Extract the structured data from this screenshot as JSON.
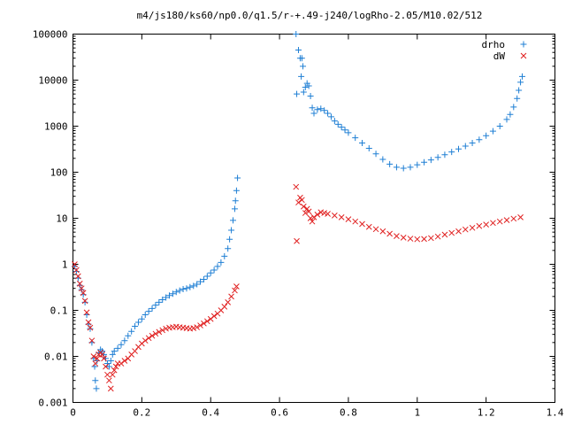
{
  "colors": {
    "drho": "#1f7fd4",
    "dW": "#e02020",
    "axis": "#000000",
    "background": "#ffffff"
  },
  "chart_data": {
    "type": "scatter",
    "title": "m4/js180/ks60/np0.0/q1.5/r-+.49-j240/logRho-2.05/M10.02/512",
    "xlabel": "",
    "ylabel": "",
    "xlim": [
      0,
      1.4
    ],
    "ylim": [
      0.001,
      100000
    ],
    "yscale": "log",
    "grid": false,
    "legend_position": "top-right",
    "x_ticks": [
      "0",
      "0.2",
      "0.4",
      "0.6",
      "0.8",
      "1",
      "1.2",
      "1.4"
    ],
    "y_ticks": [
      "0.001",
      "0.01",
      "0.1",
      "1",
      "10",
      "100",
      "1000",
      "10000",
      "100000"
    ],
    "series": [
      {
        "name": "drho",
        "marker": "plus",
        "points": [
          [
            0.005,
            0.9
          ],
          [
            0.01,
            0.7
          ],
          [
            0.015,
            0.5
          ],
          [
            0.02,
            0.35
          ],
          [
            0.025,
            0.28
          ],
          [
            0.03,
            0.22
          ],
          [
            0.035,
            0.15
          ],
          [
            0.04,
            0.08
          ],
          [
            0.045,
            0.05
          ],
          [
            0.05,
            0.04
          ],
          [
            0.055,
            0.02
          ],
          [
            0.06,
            0.009
          ],
          [
            0.063,
            0.006
          ],
          [
            0.065,
            0.003
          ],
          [
            0.068,
            0.002
          ],
          [
            0.07,
            0.008
          ],
          [
            0.075,
            0.012
          ],
          [
            0.08,
            0.014
          ],
          [
            0.085,
            0.013
          ],
          [
            0.09,
            0.011
          ],
          [
            0.095,
            0.009
          ],
          [
            0.1,
            0.007
          ],
          [
            0.105,
            0.006
          ],
          [
            0.11,
            0.008
          ],
          [
            0.115,
            0.011
          ],
          [
            0.12,
            0.013
          ],
          [
            0.13,
            0.015
          ],
          [
            0.14,
            0.018
          ],
          [
            0.15,
            0.022
          ],
          [
            0.16,
            0.028
          ],
          [
            0.17,
            0.035
          ],
          [
            0.18,
            0.045
          ],
          [
            0.19,
            0.055
          ],
          [
            0.2,
            0.065
          ],
          [
            0.21,
            0.08
          ],
          [
            0.22,
            0.095
          ],
          [
            0.23,
            0.11
          ],
          [
            0.24,
            0.13
          ],
          [
            0.25,
            0.15
          ],
          [
            0.26,
            0.17
          ],
          [
            0.27,
            0.19
          ],
          [
            0.28,
            0.21
          ],
          [
            0.29,
            0.23
          ],
          [
            0.3,
            0.25
          ],
          [
            0.31,
            0.27
          ],
          [
            0.32,
            0.29
          ],
          [
            0.33,
            0.3
          ],
          [
            0.34,
            0.32
          ],
          [
            0.35,
            0.34
          ],
          [
            0.36,
            0.37
          ],
          [
            0.37,
            0.42
          ],
          [
            0.38,
            0.47
          ],
          [
            0.39,
            0.55
          ],
          [
            0.4,
            0.65
          ],
          [
            0.41,
            0.75
          ],
          [
            0.42,
            0.9
          ],
          [
            0.43,
            1.1
          ],
          [
            0.44,
            1.5
          ],
          [
            0.45,
            2.2
          ],
          [
            0.455,
            3.5
          ],
          [
            0.46,
            5.5
          ],
          [
            0.465,
            9
          ],
          [
            0.47,
            16
          ],
          [
            0.472,
            24
          ],
          [
            0.475,
            40
          ],
          [
            0.478,
            75
          ],
          [
            0.648,
            100000
          ],
          [
            0.65,
            5000
          ],
          [
            0.655,
            45000
          ],
          [
            0.66,
            30000
          ],
          [
            0.663,
            12000
          ],
          [
            0.665,
            30000
          ],
          [
            0.668,
            20000
          ],
          [
            0.67,
            5500
          ],
          [
            0.675,
            7000
          ],
          [
            0.68,
            8500
          ],
          [
            0.685,
            7500
          ],
          [
            0.69,
            4500
          ],
          [
            0.695,
            2500
          ],
          [
            0.7,
            1900
          ],
          [
            0.71,
            2300
          ],
          [
            0.72,
            2400
          ],
          [
            0.73,
            2200
          ],
          [
            0.74,
            1900
          ],
          [
            0.75,
            1600
          ],
          [
            0.76,
            1300
          ],
          [
            0.77,
            1100
          ],
          [
            0.78,
            950
          ],
          [
            0.79,
            830
          ],
          [
            0.8,
            720
          ],
          [
            0.82,
            560
          ],
          [
            0.84,
            430
          ],
          [
            0.86,
            330
          ],
          [
            0.88,
            250
          ],
          [
            0.9,
            190
          ],
          [
            0.92,
            150
          ],
          [
            0.94,
            128
          ],
          [
            0.96,
            122
          ],
          [
            0.98,
            128
          ],
          [
            1.0,
            145
          ],
          [
            1.02,
            165
          ],
          [
            1.04,
            185
          ],
          [
            1.06,
            210
          ],
          [
            1.08,
            240
          ],
          [
            1.1,
            275
          ],
          [
            1.12,
            320
          ],
          [
            1.14,
            370
          ],
          [
            1.16,
            430
          ],
          [
            1.18,
            510
          ],
          [
            1.2,
            620
          ],
          [
            1.22,
            780
          ],
          [
            1.24,
            1000
          ],
          [
            1.26,
            1400
          ],
          [
            1.27,
            1800
          ],
          [
            1.28,
            2600
          ],
          [
            1.29,
            4000
          ],
          [
            1.295,
            6000
          ],
          [
            1.3,
            9000
          ],
          [
            1.305,
            12000
          ]
        ]
      },
      {
        "name": "dW",
        "marker": "cross",
        "points": [
          [
            0.005,
            1.0
          ],
          [
            0.01,
            0.75
          ],
          [
            0.015,
            0.55
          ],
          [
            0.02,
            0.38
          ],
          [
            0.025,
            0.3
          ],
          [
            0.03,
            0.24
          ],
          [
            0.035,
            0.16
          ],
          [
            0.04,
            0.09
          ],
          [
            0.045,
            0.055
          ],
          [
            0.05,
            0.042
          ],
          [
            0.055,
            0.022
          ],
          [
            0.06,
            0.01
          ],
          [
            0.065,
            0.007
          ],
          [
            0.07,
            0.009
          ],
          [
            0.075,
            0.011
          ],
          [
            0.08,
            0.012
          ],
          [
            0.085,
            0.011
          ],
          [
            0.09,
            0.009
          ],
          [
            0.095,
            0.006
          ],
          [
            0.1,
            0.004
          ],
          [
            0.105,
            0.003
          ],
          [
            0.11,
            0.002
          ],
          [
            0.115,
            0.004
          ],
          [
            0.12,
            0.005
          ],
          [
            0.125,
            0.006
          ],
          [
            0.13,
            0.007
          ],
          [
            0.14,
            0.007
          ],
          [
            0.15,
            0.008
          ],
          [
            0.16,
            0.009
          ],
          [
            0.17,
            0.011
          ],
          [
            0.18,
            0.013
          ],
          [
            0.19,
            0.016
          ],
          [
            0.2,
            0.019
          ],
          [
            0.21,
            0.022
          ],
          [
            0.22,
            0.025
          ],
          [
            0.23,
            0.028
          ],
          [
            0.24,
            0.031
          ],
          [
            0.25,
            0.034
          ],
          [
            0.26,
            0.037
          ],
          [
            0.27,
            0.04
          ],
          [
            0.28,
            0.042
          ],
          [
            0.29,
            0.043
          ],
          [
            0.3,
            0.044
          ],
          [
            0.31,
            0.043
          ],
          [
            0.32,
            0.042
          ],
          [
            0.33,
            0.041
          ],
          [
            0.34,
            0.04
          ],
          [
            0.35,
            0.041
          ],
          [
            0.36,
            0.043
          ],
          [
            0.37,
            0.047
          ],
          [
            0.38,
            0.052
          ],
          [
            0.39,
            0.058
          ],
          [
            0.4,
            0.065
          ],
          [
            0.41,
            0.075
          ],
          [
            0.42,
            0.085
          ],
          [
            0.43,
            0.1
          ],
          [
            0.44,
            0.12
          ],
          [
            0.45,
            0.15
          ],
          [
            0.46,
            0.2
          ],
          [
            0.47,
            0.27
          ],
          [
            0.475,
            0.33
          ],
          [
            0.648,
            48
          ],
          [
            0.65,
            3.2
          ],
          [
            0.655,
            22
          ],
          [
            0.66,
            28
          ],
          [
            0.665,
            25
          ],
          [
            0.67,
            18
          ],
          [
            0.675,
            13
          ],
          [
            0.68,
            16
          ],
          [
            0.685,
            14
          ],
          [
            0.69,
            10
          ],
          [
            0.695,
            8.5
          ],
          [
            0.7,
            10.5
          ],
          [
            0.71,
            12
          ],
          [
            0.72,
            13.5
          ],
          [
            0.73,
            13
          ],
          [
            0.74,
            12.5
          ],
          [
            0.76,
            11.5
          ],
          [
            0.78,
            10.5
          ],
          [
            0.8,
            9.5
          ],
          [
            0.82,
            8.5
          ],
          [
            0.84,
            7.5
          ],
          [
            0.86,
            6.5
          ],
          [
            0.88,
            5.8
          ],
          [
            0.9,
            5.2
          ],
          [
            0.92,
            4.6
          ],
          [
            0.94,
            4.1
          ],
          [
            0.96,
            3.8
          ],
          [
            0.98,
            3.6
          ],
          [
            1.0,
            3.5
          ],
          [
            1.02,
            3.55
          ],
          [
            1.04,
            3.7
          ],
          [
            1.06,
            4.0
          ],
          [
            1.08,
            4.4
          ],
          [
            1.1,
            4.8
          ],
          [
            1.12,
            5.2
          ],
          [
            1.14,
            5.7
          ],
          [
            1.16,
            6.2
          ],
          [
            1.18,
            6.8
          ],
          [
            1.2,
            7.3
          ],
          [
            1.22,
            7.9
          ],
          [
            1.24,
            8.5
          ],
          [
            1.26,
            9.1
          ],
          [
            1.28,
            9.8
          ],
          [
            1.3,
            10.5
          ]
        ]
      }
    ]
  }
}
